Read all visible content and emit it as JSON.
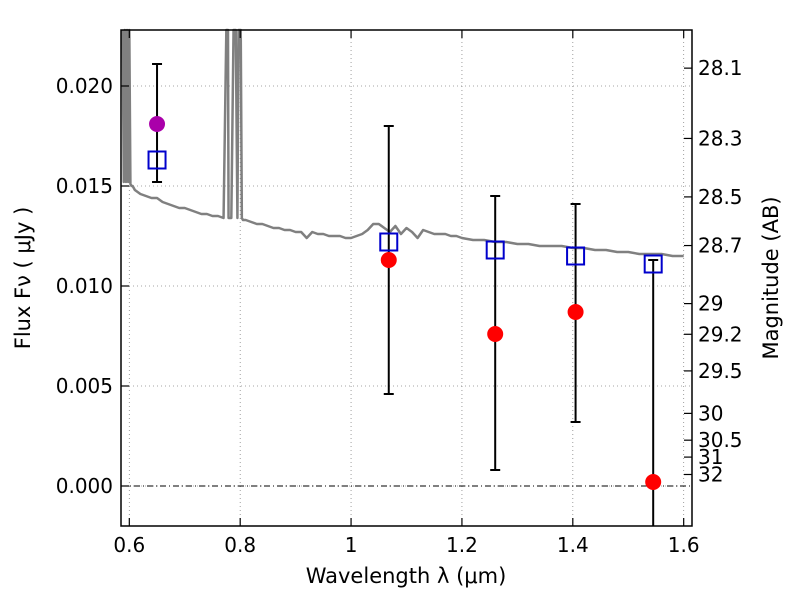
{
  "chart_data": {
    "type": "scatter",
    "title": "",
    "xlabel": "Wavelength  λ (μm)",
    "ylabel": "Flux  Fν  ( μJy )",
    "y2label": "Magnitude (AB)",
    "xlim": [
      0.585,
      1.615
    ],
    "ylim": [
      -0.002,
      0.0228
    ],
    "grid": true,
    "x_ticks": [
      0.6,
      0.8,
      1.0,
      1.2,
      1.4,
      1.6
    ],
    "x_tick_labels": [
      "0.6",
      "0.8",
      "1",
      "1.2",
      "1.4",
      "1.6"
    ],
    "y_ticks": [
      0.0,
      0.005,
      0.01,
      0.015,
      0.02
    ],
    "y_tick_labels": [
      "0.000",
      "0.005",
      "0.010",
      "0.015",
      "0.020"
    ],
    "mag_ticks": [
      28.1,
      28.3,
      28.5,
      28.7,
      29,
      29.2,
      29.5,
      30,
      30.5,
      31,
      32
    ],
    "mag_tick_labels": [
      "28.1",
      "28.3",
      "28.5",
      "28.7",
      "29",
      "29.2",
      "29.5",
      "30",
      "30.5",
      "31",
      "32"
    ],
    "series": [
      {
        "kind": "line",
        "color": "#808080",
        "x": [
          0.588,
          0.59,
          0.592,
          0.594,
          0.596,
          0.598,
          0.6,
          0.602,
          0.604,
          0.606,
          0.61,
          0.62,
          0.63,
          0.64,
          0.65,
          0.66,
          0.67,
          0.68,
          0.69,
          0.7,
          0.71,
          0.72,
          0.73,
          0.74,
          0.75,
          0.76,
          0.77,
          0.775,
          0.778,
          0.779,
          0.781,
          0.784,
          0.788,
          0.792,
          0.795,
          0.797,
          0.799,
          0.801,
          0.803,
          0.805,
          0.81,
          0.82,
          0.83,
          0.84,
          0.85,
          0.86,
          0.87,
          0.88,
          0.89,
          0.9,
          0.91,
          0.92,
          0.93,
          0.94,
          0.95,
          0.96,
          0.97,
          0.98,
          0.99,
          1.0,
          1.01,
          1.02,
          1.03,
          1.04,
          1.05,
          1.06,
          1.07,
          1.08,
          1.09,
          1.1,
          1.11,
          1.12,
          1.13,
          1.14,
          1.15,
          1.16,
          1.17,
          1.18,
          1.19,
          1.2,
          1.22,
          1.24,
          1.26,
          1.28,
          1.3,
          1.32,
          1.34,
          1.36,
          1.38,
          1.4,
          1.42,
          1.44,
          1.46,
          1.48,
          1.5,
          1.52,
          1.54,
          1.56,
          1.58,
          1.6
        ],
        "y": [
          0.0228,
          0.0152,
          0.0228,
          0.0152,
          0.0228,
          0.0152,
          0.0228,
          0.0151,
          0.015,
          0.015,
          0.0148,
          0.0146,
          0.0145,
          0.0144,
          0.0144,
          0.0142,
          0.0141,
          0.014,
          0.0139,
          0.0139,
          0.0138,
          0.0137,
          0.0136,
          0.0136,
          0.0135,
          0.0135,
          0.0134,
          0.0228,
          0.0228,
          0.0134,
          0.0134,
          0.0134,
          0.0228,
          0.0228,
          0.0134,
          0.0228,
          0.0228,
          0.0228,
          0.0134,
          0.0133,
          0.0133,
          0.0132,
          0.0131,
          0.0131,
          0.013,
          0.0129,
          0.0129,
          0.0128,
          0.0128,
          0.0127,
          0.0127,
          0.0124,
          0.0127,
          0.0126,
          0.0126,
          0.0125,
          0.0125,
          0.0125,
          0.0124,
          0.0124,
          0.0125,
          0.0126,
          0.0128,
          0.0131,
          0.0131,
          0.0129,
          0.0127,
          0.013,
          0.0126,
          0.0129,
          0.0127,
          0.0124,
          0.0128,
          0.0127,
          0.0126,
          0.0126,
          0.0126,
          0.0125,
          0.0125,
          0.0124,
          0.0123,
          0.0123,
          0.0122,
          0.0122,
          0.0121,
          0.0121,
          0.012,
          0.012,
          0.012,
          0.0119,
          0.0119,
          0.0118,
          0.0118,
          0.0117,
          0.0117,
          0.0116,
          0.0116,
          0.0116,
          0.0115,
          0.0115
        ]
      },
      {
        "kind": "errorbar",
        "color": "#000000",
        "points": [
          {
            "x": 0.65,
            "lo": 0.0152,
            "hi": 0.0211
          },
          {
            "x": 1.068,
            "lo": 0.0046,
            "hi": 0.018
          },
          {
            "x": 1.26,
            "lo": 0.0008,
            "hi": 0.0145
          },
          {
            "x": 1.405,
            "lo": 0.0032,
            "hi": 0.0141
          },
          {
            "x": 1.545,
            "lo": -0.002,
            "hi": 0.0113
          }
        ]
      },
      {
        "kind": "open-square",
        "color": "#0000cc",
        "x": [
          0.65,
          1.068,
          1.26,
          1.405,
          1.545
        ],
        "y": [
          0.0163,
          0.0122,
          0.0118,
          0.0115,
          0.0111
        ]
      },
      {
        "kind": "filled-circle",
        "color": "#ff0000",
        "x": [
          1.068,
          1.26,
          1.405,
          1.545
        ],
        "y": [
          0.0113,
          0.0076,
          0.0087,
          0.0002
        ]
      },
      {
        "kind": "filled-circle",
        "color": "#aa00aa",
        "x": [
          0.65
        ],
        "y": [
          0.0181
        ]
      }
    ]
  }
}
